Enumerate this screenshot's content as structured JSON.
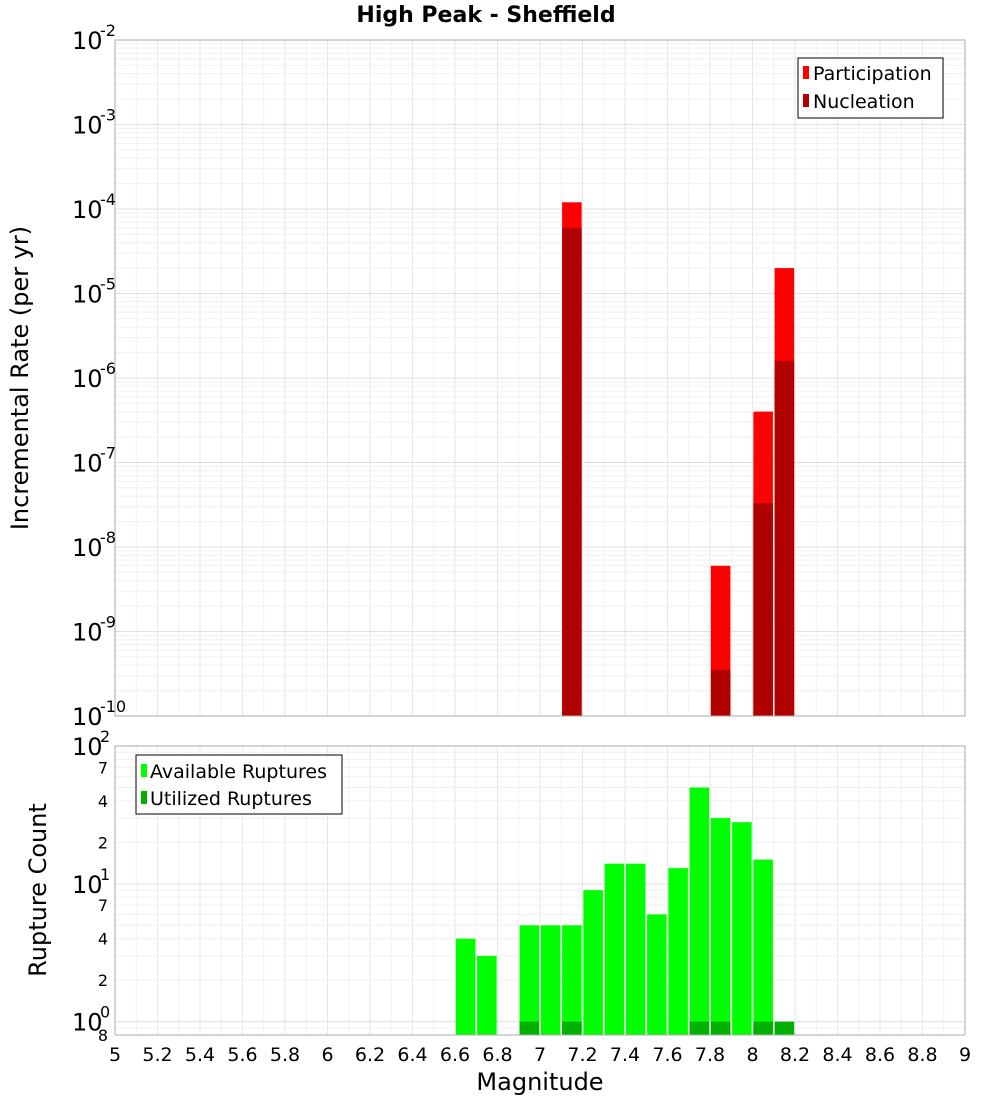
{
  "colors": {
    "participation": "#ff0000",
    "nucleation": "#b00000",
    "available": "#00ff00",
    "utilized": "#00b000",
    "gridline": "#e8e8e8",
    "frame": "#aaaaaa"
  },
  "chart_data": [
    {
      "type": "bar",
      "title": "High Peak - Sheffield",
      "xlabel": "",
      "ylabel": "Incremental Rate (per yr)",
      "yscale": "log",
      "xlim": [
        5,
        9
      ],
      "ylim": [
        1e-10,
        0.01
      ],
      "ytick_labels": [
        {
          "value": 0.01,
          "base": "10",
          "exp": "-2"
        },
        {
          "value": 0.001,
          "base": "10",
          "exp": "-3"
        },
        {
          "value": 0.0001,
          "base": "10",
          "exp": "-4"
        },
        {
          "value": 1e-05,
          "base": "10",
          "exp": "-5"
        },
        {
          "value": 1e-06,
          "base": "10",
          "exp": "-6"
        },
        {
          "value": 1e-07,
          "base": "10",
          "exp": "-7"
        },
        {
          "value": 1e-08,
          "base": "10",
          "exp": "-8"
        },
        {
          "value": 1e-09,
          "base": "10",
          "exp": "-9"
        },
        {
          "value": 1e-10,
          "base": "10",
          "exp": "-10"
        }
      ],
      "legend": {
        "position": "top-right",
        "entries": [
          {
            "label": "Participation",
            "color": "#ff0000"
          },
          {
            "label": "Nucleation",
            "color": "#b00000"
          }
        ]
      },
      "bin_width": 0.1,
      "series": [
        {
          "name": "Participation",
          "x": [
            7.15,
            7.85,
            8.05,
            8.15
          ],
          "values": [
            0.00012,
            6e-09,
            4e-07,
            2e-05
          ]
        },
        {
          "name": "Nucleation",
          "x": [
            7.15,
            7.85,
            8.05,
            8.15
          ],
          "values": [
            6e-05,
            3.5e-10,
            3.3e-08,
            1.6e-06
          ]
        }
      ]
    },
    {
      "type": "bar",
      "title": "",
      "xlabel": "Magnitude",
      "ylabel": "Rupture Count",
      "yscale": "log",
      "xlim": [
        5,
        9
      ],
      "ylim": [
        0.8,
        100
      ],
      "ytick_labels": [
        {
          "value": 100,
          "base": "10",
          "exp": "2"
        },
        {
          "value": 10,
          "base": "10",
          "exp": "1"
        },
        {
          "value": 1,
          "base": "10",
          "exp": "0"
        }
      ],
      "minor_tick_labels": [
        {
          "value": 70,
          "label": "7"
        },
        {
          "value": 40,
          "label": "4"
        },
        {
          "value": 20,
          "label": "2"
        },
        {
          "value": 7,
          "label": "7"
        },
        {
          "value": 4,
          "label": "4"
        },
        {
          "value": 2,
          "label": "2"
        },
        {
          "value": 0.8,
          "label": "8"
        }
      ],
      "x_ticks": [
        "5",
        "5.2",
        "5.4",
        "5.6",
        "5.8",
        "6",
        "6.2",
        "6.4",
        "6.6",
        "6.8",
        "7",
        "7.2",
        "7.4",
        "7.6",
        "7.8",
        "8",
        "8.2",
        "8.4",
        "8.6",
        "8.8",
        "9"
      ],
      "legend": {
        "position": "top-left",
        "entries": [
          {
            "label": "Available Ruptures",
            "color": "#00ff00"
          },
          {
            "label": "Utilized Ruptures",
            "color": "#00b000"
          }
        ]
      },
      "bin_width": 0.1,
      "series": [
        {
          "name": "Available Ruptures",
          "x": [
            6.65,
            6.75,
            6.95,
            7.05,
            7.15,
            7.25,
            7.35,
            7.45,
            7.55,
            7.65,
            7.75,
            7.85,
            7.95,
            8.05
          ],
          "values": [
            4,
            3,
            5,
            5,
            5,
            9,
            14,
            14,
            6,
            13,
            50,
            30,
            28,
            15
          ]
        },
        {
          "name": "Utilized Ruptures",
          "x": [
            6.95,
            7.15,
            7.75,
            7.85,
            8.05,
            8.15
          ],
          "values": [
            1,
            1,
            1,
            1,
            1,
            1
          ]
        }
      ]
    }
  ]
}
